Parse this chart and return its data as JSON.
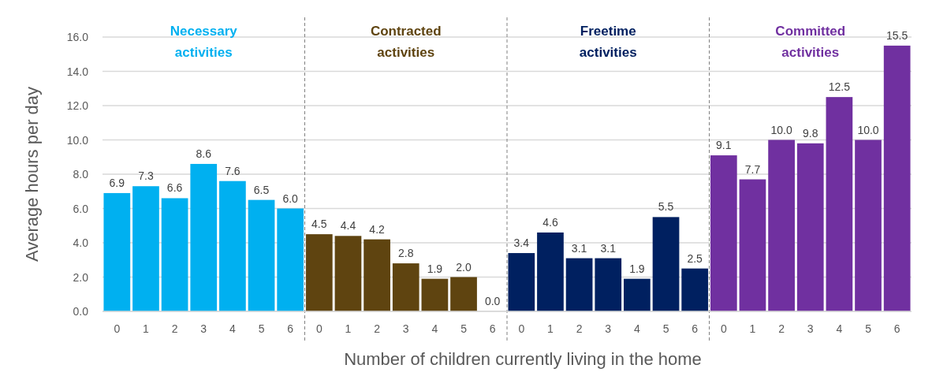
{
  "chart_data": {
    "type": "bar",
    "xlabel": "Number of children currently living in the home",
    "ylabel": "Average hours per day",
    "categories": [
      "0",
      "1",
      "2",
      "3",
      "4",
      "5",
      "6",
      "0",
      "1",
      "2",
      "3",
      "4",
      "5",
      "6",
      "0",
      "1",
      "2",
      "3",
      "4",
      "5",
      "6",
      "0",
      "1",
      "2",
      "3",
      "4",
      "5",
      "6"
    ],
    "series": [
      {
        "name": "Necessary activities",
        "color": "#00b0f0",
        "values": [
          6.9,
          7.3,
          6.6,
          8.6,
          7.6,
          6.5,
          6.0,
          null,
          null,
          null,
          null,
          null,
          null,
          null,
          null,
          null,
          null,
          null,
          null,
          null,
          null,
          null,
          null,
          null,
          null,
          null,
          null,
          null
        ],
        "value_labels": [
          "6.9",
          "7.3",
          "6.6",
          "8.6",
          "7.6",
          "6.5",
          "6.0",
          null,
          null,
          null,
          null,
          null,
          null,
          null,
          null,
          null,
          null,
          null,
          null,
          null,
          null,
          null,
          null,
          null,
          null,
          null,
          null,
          null
        ]
      },
      {
        "name": "Contracted activities",
        "color": "#5f4410",
        "values": [
          null,
          null,
          null,
          null,
          null,
          null,
          null,
          4.5,
          4.4,
          4.2,
          2.8,
          1.9,
          2.0,
          0.0,
          null,
          null,
          null,
          null,
          null,
          null,
          null,
          null,
          null,
          null,
          null,
          null,
          null,
          null
        ],
        "value_labels": [
          null,
          null,
          null,
          null,
          null,
          null,
          null,
          "4.5",
          "4.4",
          "4.2",
          "2.8",
          "1.9",
          "2.0",
          "0.0",
          null,
          null,
          null,
          null,
          null,
          null,
          null,
          null,
          null,
          null,
          null,
          null,
          null,
          null
        ]
      },
      {
        "name": "Freetime activities",
        "color": "#002060",
        "values": [
          null,
          null,
          null,
          null,
          null,
          null,
          null,
          null,
          null,
          null,
          null,
          null,
          null,
          null,
          3.4,
          4.6,
          3.1,
          3.1,
          1.9,
          5.5,
          2.5,
          null,
          null,
          null,
          null,
          null,
          null,
          null
        ],
        "value_labels": [
          null,
          null,
          null,
          null,
          null,
          null,
          null,
          null,
          null,
          null,
          null,
          null,
          null,
          null,
          "3.4",
          "4.6",
          "3.1",
          "3.1",
          "1.9",
          "5.5",
          "2.5",
          null,
          null,
          null,
          null,
          null,
          null,
          null
        ]
      },
      {
        "name": "Committed activities",
        "color": "#7030a0",
        "values": [
          null,
          null,
          null,
          null,
          null,
          null,
          null,
          null,
          null,
          null,
          null,
          null,
          null,
          null,
          null,
          null,
          null,
          null,
          null,
          null,
          null,
          9.1,
          7.7,
          10.0,
          9.8,
          12.5,
          10.0,
          15.5
        ],
        "value_labels": [
          null,
          null,
          null,
          null,
          null,
          null,
          null,
          null,
          null,
          null,
          null,
          null,
          null,
          null,
          null,
          null,
          null,
          null,
          null,
          null,
          null,
          "9.1",
          "7.7",
          "10.0",
          "9.8",
          "12.5",
          "10.0",
          "15.5"
        ]
      }
    ],
    "ylim": [
      0,
      16
    ],
    "yticks": [
      {
        "value": 0,
        "label": "0.0"
      },
      {
        "value": 2,
        "label": "2.0"
      },
      {
        "value": 4,
        "label": "4.0"
      },
      {
        "value": 6,
        "label": "6.0"
      },
      {
        "value": 8,
        "label": "8.0"
      },
      {
        "value": 10,
        "label": "10.0"
      },
      {
        "value": 12,
        "label": "12.0"
      },
      {
        "value": 14,
        "label": "14.0"
      },
      {
        "value": 16,
        "label": "16.0"
      }
    ],
    "grid": "y"
  }
}
